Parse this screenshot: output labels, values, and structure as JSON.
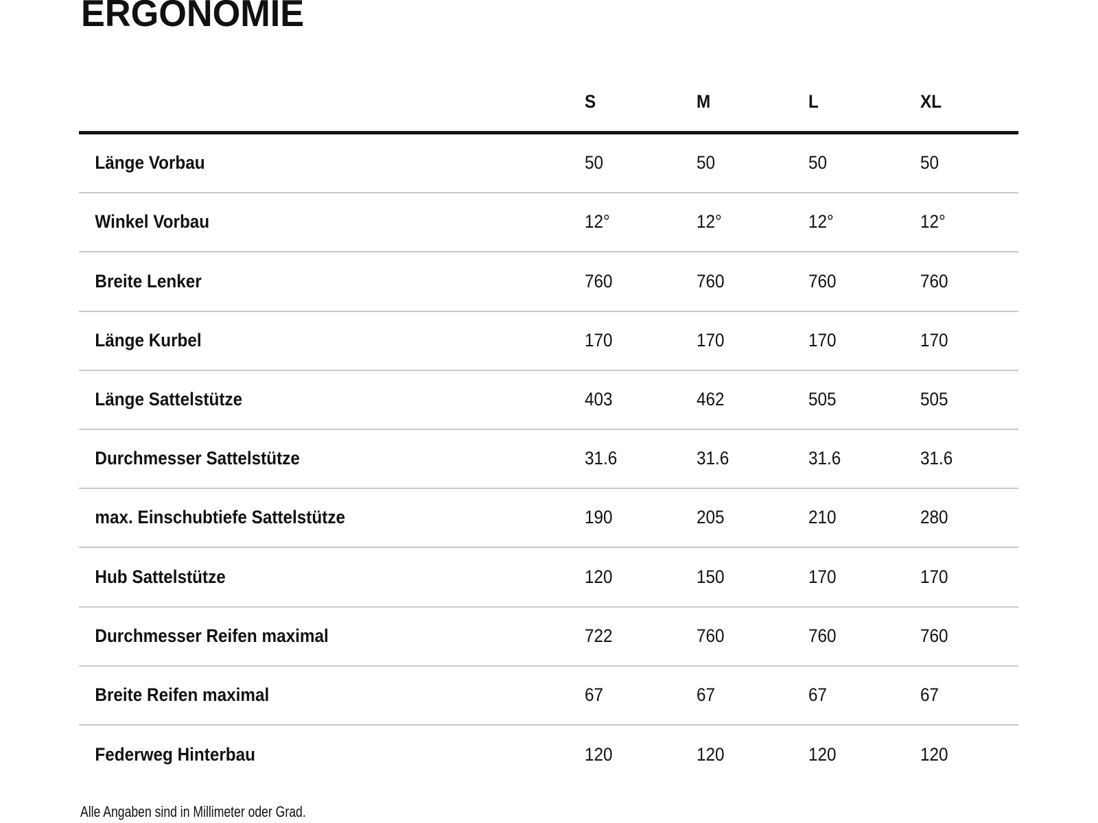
{
  "page": {
    "title": "ERGONOMIE",
    "footnote": "Alle Angaben sind in Millimeter oder Grad."
  },
  "table": {
    "columns": [
      "S",
      "M",
      "L",
      "XL"
    ],
    "rows": [
      {
        "label": "Länge Vorbau",
        "values": [
          "50",
          "50",
          "50",
          "50"
        ]
      },
      {
        "label": "Winkel Vorbau",
        "values": [
          "12°",
          "12°",
          "12°",
          "12°"
        ]
      },
      {
        "label": "Breite Lenker",
        "values": [
          "760",
          "760",
          "760",
          "760"
        ]
      },
      {
        "label": "Länge Kurbel",
        "values": [
          "170",
          "170",
          "170",
          "170"
        ]
      },
      {
        "label": "Länge Sattelstütze",
        "values": [
          "403",
          "462",
          "505",
          "505"
        ]
      },
      {
        "label": "Durchmesser Sattelstütze",
        "values": [
          "31.6",
          "31.6",
          "31.6",
          "31.6"
        ]
      },
      {
        "label": "max. Einschubtiefe Sattelstütze",
        "values": [
          "190",
          "205",
          "210",
          "280"
        ]
      },
      {
        "label": "Hub Sattelstütze",
        "values": [
          "120",
          "150",
          "170",
          "170"
        ]
      },
      {
        "label": "Durchmesser Reifen maximal",
        "values": [
          "722",
          "760",
          "760",
          "760"
        ]
      },
      {
        "label": "Breite Reifen maximal",
        "values": [
          "67",
          "67",
          "67",
          "67"
        ]
      },
      {
        "label": "Federweg Hinterbau",
        "values": [
          "120",
          "120",
          "120",
          "120"
        ]
      }
    ]
  },
  "colors": {
    "background": "#ffffff",
    "text": "#111111",
    "header_rule": "#111111",
    "divider": "#c9c9c9"
  }
}
